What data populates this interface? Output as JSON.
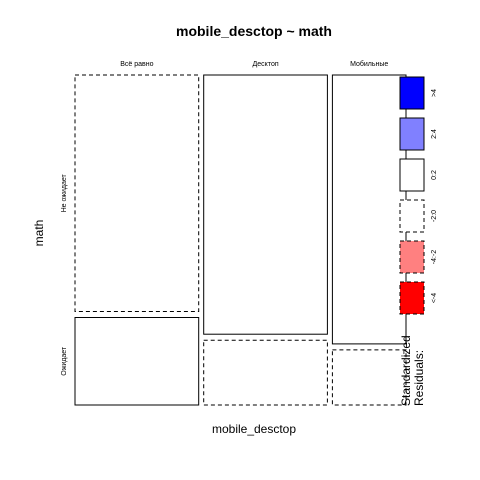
{
  "chart_data": {
    "type": "mosaic",
    "title": "mobile_desctop ~ math",
    "xlabel": "mobile_desctop",
    "ylabel": "math",
    "x_categories": [
      "Всё равно",
      "Десктоп",
      "Мобильные"
    ],
    "y_categories": [
      "Не ожидает",
      "Ожидает"
    ],
    "column_shares": [
      0.37,
      0.37,
      0.22
    ],
    "cells": [
      {
        "x": "Всё равно",
        "y": "Не ожидает",
        "share": 0.73,
        "residual_bin": "-2:0"
      },
      {
        "x": "Всё равно",
        "y": "Ожидает",
        "share": 0.27,
        "residual_bin": "0:2"
      },
      {
        "x": "Десктоп",
        "y": "Не ожидает",
        "share": 0.8,
        "residual_bin": "0:2"
      },
      {
        "x": "Десктоп",
        "y": "Ожидает",
        "share": 0.2,
        "residual_bin": "-2:0"
      },
      {
        "x": "Мобильные",
        "y": "Не ожидает",
        "share": 0.83,
        "residual_bin": "0:2"
      },
      {
        "x": "Мобильные",
        "y": "Ожидает",
        "share": 0.17,
        "residual_bin": "-2:0"
      }
    ],
    "legend": {
      "title": "Standardized\nResiduals:",
      "entries": [
        {
          "label": ">4",
          "fill": "#0000ff",
          "dashed": false
        },
        {
          "label": "2:4",
          "fill": "#8080ff",
          "dashed": false
        },
        {
          "label": "0:2",
          "fill": "#ffffff",
          "dashed": false
        },
        {
          "label": "-2:0",
          "fill": "#ffffff",
          "dashed": true
        },
        {
          "label": "-4:-2",
          "fill": "#ff8080",
          "dashed": true
        },
        {
          "label": "<-4",
          "fill": "#ff0000",
          "dashed": true
        }
      ]
    }
  }
}
